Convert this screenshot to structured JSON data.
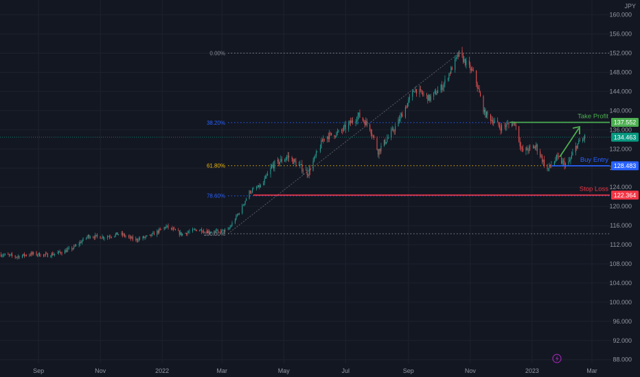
{
  "chart_data": {
    "type": "candlestick",
    "currency_label": "JPY",
    "y_range": [
      87,
      160
    ],
    "y_ticks": [
      "160.000",
      "156.000",
      "152.000",
      "148.000",
      "144.000",
      "140.000",
      "136.000",
      "132.000",
      "128.000",
      "124.000",
      "120.000",
      "116.000",
      "112.000",
      "108.000",
      "104.000",
      "100.000",
      "96.000",
      "92.000",
      "88.000"
    ],
    "y_tick_values": [
      160,
      156,
      152,
      148,
      144,
      140,
      136,
      132,
      128,
      124,
      120,
      116,
      112,
      108,
      104,
      100,
      96,
      92,
      88
    ],
    "x_ticks": [
      "Sep",
      "Nov",
      "2022",
      "Mar",
      "May",
      "Jul",
      "Sep",
      "Nov",
      "2023",
      "Mar"
    ],
    "x_tick_dates": [
      "2021-09-01",
      "2021-11-01",
      "2022-01-01",
      "2022-03-01",
      "2022-05-01",
      "2022-07-01",
      "2022-09-01",
      "2022-11-01",
      "2023-01-01",
      "2023-03-01"
    ],
    "x_range": [
      "2021-07-25",
      "2023-03-20"
    ],
    "price_path": [
      [
        "2021-07-25",
        110.0
      ],
      [
        "2021-08-10",
        109.5
      ],
      [
        "2021-08-25",
        110.1
      ],
      [
        "2021-09-10",
        109.8
      ],
      [
        "2021-09-25",
        110.5
      ],
      [
        "2021-10-05",
        111.3
      ],
      [
        "2021-10-20",
        113.8
      ],
      [
        "2021-11-05",
        113.6
      ],
      [
        "2021-11-20",
        114.3
      ],
      [
        "2021-12-05",
        113.0
      ],
      [
        "2021-12-20",
        113.8
      ],
      [
        "2022-01-05",
        115.8
      ],
      [
        "2022-01-20",
        114.2
      ],
      [
        "2022-02-05",
        115.2
      ],
      [
        "2022-02-20",
        114.6
      ],
      [
        "2022-03-07",
        115.0
      ],
      [
        "2022-03-20",
        119.5
      ],
      [
        "2022-03-28",
        123.0
      ],
      [
        "2022-04-10",
        124.5
      ],
      [
        "2022-04-20",
        128.5
      ],
      [
        "2022-05-05",
        130.4
      ],
      [
        "2022-05-20",
        127.8
      ],
      [
        "2022-05-25",
        127.0
      ],
      [
        "2022-06-10",
        134.5
      ],
      [
        "2022-06-25",
        135.4
      ],
      [
        "2022-07-14",
        139.0
      ],
      [
        "2022-07-25",
        136.5
      ],
      [
        "2022-08-02",
        131.5
      ],
      [
        "2022-08-20",
        136.8
      ],
      [
        "2022-09-07",
        144.5
      ],
      [
        "2022-09-22",
        142.5
      ],
      [
        "2022-10-05",
        145.2
      ],
      [
        "2022-10-21",
        151.9
      ],
      [
        "2022-11-05",
        147.5
      ],
      [
        "2022-11-15",
        139.5
      ],
      [
        "2022-12-01",
        136.5
      ],
      [
        "2022-12-15",
        137.5
      ],
      [
        "2022-12-22",
        131.5
      ],
      [
        "2023-01-05",
        132.5
      ],
      [
        "2023-01-16",
        127.6
      ],
      [
        "2023-01-25",
        130.0
      ],
      [
        "2023-02-05",
        128.5
      ],
      [
        "2023-02-14",
        132.8
      ],
      [
        "2023-02-22",
        134.5
      ]
    ],
    "fibonacci": [
      {
        "label": "0.00%",
        "price": 152.0,
        "color": "#8a8d95"
      },
      {
        "label": "38.20%",
        "price": 137.5,
        "color": "#2962ff"
      },
      {
        "label": "61.80%",
        "price": 128.5,
        "color": "#f0b90b"
      },
      {
        "label": "78.60%",
        "price": 122.2,
        "color": "#2962ff"
      },
      {
        "label": "100.00%",
        "price": 114.3,
        "color": "#8a8d95"
      }
    ],
    "fib_line_color": "#787b86",
    "annotations": [
      {
        "label": "Take Profit",
        "price": 137.552,
        "color": "#4caf50",
        "start": "2022-12-10"
      },
      {
        "label": "Buy Entry",
        "price": 128.483,
        "color": "#2962ff",
        "start": "2023-01-20"
      },
      {
        "label": "Stop Loss",
        "price": 122.364,
        "color": "#f23645",
        "start": "2022-04-01"
      }
    ],
    "price_labels": [
      {
        "text": "137.552",
        "price": 137.552,
        "bg": "#4caf50",
        "fg": "#ffffff"
      },
      {
        "text": "134.463",
        "price": 134.463,
        "bg": "#089981",
        "fg": "#ffffff"
      },
      {
        "text": "128.483",
        "price": 128.483,
        "bg": "#2962ff",
        "fg": "#ffffff"
      },
      {
        "text": "122.364",
        "price": 122.364,
        "bg": "#f23645",
        "fg": "#ffffff"
      }
    ],
    "current_price": 134.463,
    "up_color": "#26a69a",
    "down_color": "#ef5350",
    "arrow_color": "#4caf50",
    "grid": true,
    "background": "#131722"
  }
}
